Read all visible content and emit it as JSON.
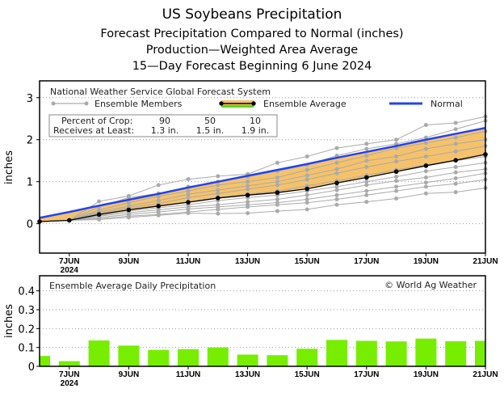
{
  "titles": [
    "US Soybeans Precipitation",
    "Forecast Precipitation Compared to Normal (inches)",
    "Production—Weighted Area Average",
    "15—Day Forecast Beginning 6 June 2024"
  ],
  "colors": {
    "normal": "#2244ee",
    "band": "#f5c26b",
    "average": "#000000",
    "member": "#aaaaaa",
    "bar": "#77ee00",
    "avg_legend_under": "#55dd00"
  },
  "chart_data": [
    {
      "type": "line",
      "source_label": "National Weather Service Global Forecast System",
      "ylabel": "inches",
      "ylim": [
        -0.7,
        3.4
      ],
      "yticks": [
        0,
        1,
        2,
        3
      ],
      "grid": "dotted horizontal",
      "x": [
        "6JUN",
        "7JUN",
        "8JUN",
        "9JUN",
        "10JUN",
        "11JUN",
        "12JUN",
        "13JUN",
        "14JUN",
        "15JUN",
        "16JUN",
        "17JUN",
        "18JUN",
        "19JUN",
        "20JUN",
        "21JUN"
      ],
      "xtick_labels": [
        {
          "label": "7JUN",
          "sub": "2024"
        },
        {
          "label": "9JUN"
        },
        {
          "label": "11JUN"
        },
        {
          "label": "13JUN"
        },
        {
          "label": "15JUN"
        },
        {
          "label": "17JUN"
        },
        {
          "label": "19JUN"
        },
        {
          "label": "21JUN"
        }
      ],
      "legend": {
        "members": "Ensemble Members",
        "average": "Ensemble Average",
        "normal": "Normal"
      },
      "crop_table": {
        "row1_label": "Percent of Crop:",
        "row2_label": "Receives at Least:",
        "percents": [
          "90",
          "50",
          "10"
        ],
        "amounts": [
          "1.3 in.",
          "1.5 in.",
          "1.9 in."
        ]
      },
      "series": [
        {
          "name": "Normal",
          "values": [
            0.14,
            0.28,
            0.43,
            0.57,
            0.71,
            0.86,
            1.0,
            1.14,
            1.28,
            1.42,
            1.57,
            1.71,
            1.85,
            2.0,
            2.14,
            2.28
          ]
        },
        {
          "name": "Ensemble Average",
          "values": [
            0.05,
            0.08,
            0.22,
            0.33,
            0.42,
            0.51,
            0.61,
            0.68,
            0.74,
            0.83,
            0.97,
            1.1,
            1.24,
            1.38,
            1.51,
            1.65
          ]
        }
      ],
      "members": [
        [
          0.05,
          0.08,
          0.53,
          0.66,
          0.92,
          1.06,
          1.13,
          1.18,
          1.45,
          1.6,
          1.8,
          1.9,
          2.0,
          2.35,
          2.4,
          2.55
        ],
        [
          0.05,
          0.08,
          0.4,
          0.62,
          0.72,
          0.88,
          1.0,
          1.12,
          1.25,
          1.4,
          1.62,
          1.78,
          1.9,
          2.05,
          2.25,
          2.45
        ],
        [
          0.05,
          0.08,
          0.32,
          0.5,
          0.65,
          0.78,
          0.92,
          1.0,
          1.1,
          1.28,
          1.45,
          1.62,
          1.8,
          1.92,
          2.05,
          2.2
        ],
        [
          0.05,
          0.08,
          0.28,
          0.42,
          0.55,
          0.7,
          0.8,
          0.9,
          1.0,
          1.15,
          1.3,
          1.5,
          1.6,
          1.78,
          1.9,
          2.0
        ],
        [
          0.05,
          0.08,
          0.25,
          0.38,
          0.48,
          0.62,
          0.72,
          0.82,
          0.92,
          1.05,
          1.2,
          1.35,
          1.48,
          1.6,
          1.72,
          1.85
        ],
        [
          0.05,
          0.08,
          0.22,
          0.33,
          0.42,
          0.52,
          0.62,
          0.7,
          0.78,
          0.9,
          1.02,
          1.15,
          1.28,
          1.4,
          1.5,
          1.6
        ],
        [
          0.05,
          0.08,
          0.2,
          0.3,
          0.38,
          0.45,
          0.55,
          0.62,
          0.68,
          0.78,
          0.88,
          1.0,
          1.12,
          1.25,
          1.35,
          1.45
        ],
        [
          0.05,
          0.08,
          0.18,
          0.26,
          0.33,
          0.4,
          0.45,
          0.52,
          0.58,
          0.68,
          0.8,
          0.92,
          1.02,
          1.1,
          1.22,
          1.3
        ],
        [
          0.05,
          0.08,
          0.15,
          0.22,
          0.28,
          0.35,
          0.4,
          0.45,
          0.5,
          0.58,
          0.68,
          0.78,
          0.88,
          0.98,
          1.08,
          1.2
        ],
        [
          0.05,
          0.08,
          0.12,
          0.18,
          0.22,
          0.28,
          0.34,
          0.4,
          0.45,
          0.5,
          0.58,
          0.68,
          0.78,
          0.88,
          0.95,
          1.05
        ],
        [
          0.05,
          0.08,
          0.1,
          0.15,
          0.2,
          0.25,
          0.24,
          0.25,
          0.3,
          0.34,
          0.45,
          0.52,
          0.6,
          0.72,
          0.75,
          0.85
        ]
      ]
    },
    {
      "type": "bar",
      "title": "Ensemble Average Daily Precipitation",
      "credit": "© World Ag Weather",
      "ylabel": "inches",
      "ylim": [
        0,
        0.48
      ],
      "yticks": [
        0,
        0.1,
        0.2,
        0.3,
        0.4
      ],
      "ytick_labels": [
        "0",
        "0.1",
        "0.2",
        "0.3",
        "0.4"
      ],
      "grid": "dotted horizontal",
      "categories": [
        "6JUN",
        "7JUN",
        "8JUN",
        "9JUN",
        "10JUN",
        "11JUN",
        "12JUN",
        "13JUN",
        "14JUN",
        "15JUN",
        "16JUN",
        "17JUN",
        "18JUN",
        "19JUN",
        "20JUN",
        "21JUN"
      ],
      "values": [
        0.055,
        0.027,
        0.137,
        0.11,
        0.087,
        0.091,
        0.1,
        0.062,
        0.059,
        0.093,
        0.14,
        0.135,
        0.132,
        0.147,
        0.133,
        0.135
      ]
    }
  ]
}
